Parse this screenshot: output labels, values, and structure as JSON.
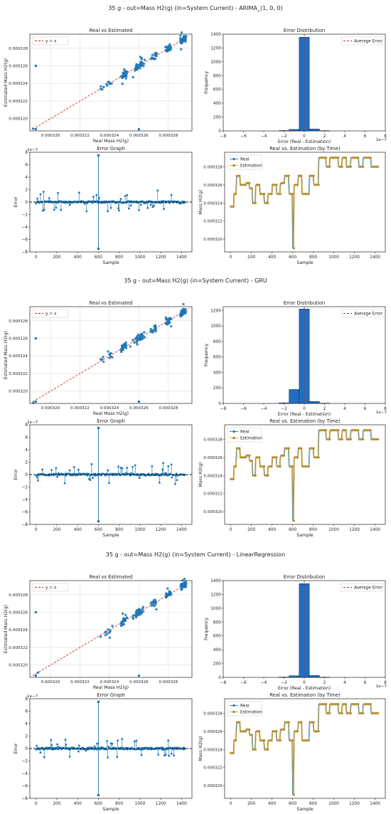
{
  "figures": [
    {
      "title": "35 g - out=Mass H2(g) (in=System Current) - ARIMA_(1, 0, 0)",
      "scatter": {
        "title": "Real vs Estimated",
        "xlabel": "Real Mass H2(g)",
        "ylabel": "Estimated Mass H2(g)",
        "legend": "y = x"
      },
      "hist": {
        "title": "Error Distribution",
        "xlabel": "Error (Real - Estimation)",
        "ylabel": "Frequency",
        "legend": "Average Error",
        "ylim": [
          0,
          1400
        ],
        "yticks": [
          0,
          200,
          400,
          600,
          800,
          1000,
          1200,
          1400
        ],
        "bars": [
          0,
          5,
          22,
          1356,
          28,
          4,
          0
        ],
        "offset": "1e−7"
      },
      "errgraph": {
        "title": "Error Graph",
        "xlabel": "Sample",
        "ylabel": "Error",
        "offset": "1e−7"
      },
      "timeseries": {
        "title": "Real vs. Estimation (by Time)",
        "xlabel": "Sample",
        "ylabel": "Mass H2(g)",
        "legend": [
          "Real",
          "Estimation"
        ]
      }
    },
    {
      "title": "35 g - out=Mass H2(g) (in=System Current) - GRU",
      "scatter": {
        "title": "Real vs Estimated",
        "xlabel": "Real Mass H2(g)",
        "ylabel": "Estimated Mass H2(g)",
        "legend": "y = x"
      },
      "hist": {
        "title": "Error Distribution",
        "xlabel": "Error (Real - Estimation)",
        "ylabel": "Frequency",
        "legend": "Average Error",
        "ylim": [
          0,
          1250
        ],
        "yticks": [
          0,
          200,
          400,
          600,
          800,
          1000,
          1200
        ],
        "bars": [
          0,
          8,
          180,
          1220,
          26,
          4,
          0
        ],
        "offset": "1e−7"
      },
      "errgraph": {
        "title": "Error Graph",
        "xlabel": "Sample",
        "ylabel": "Error",
        "offset": "1e−7"
      },
      "timeseries": {
        "title": "Real vs. Estimation (by Time)",
        "xlabel": "Sample",
        "ylabel": "Mass H2(g)",
        "legend": [
          "Real",
          "Estimation"
        ]
      }
    },
    {
      "title": "35 g - out=Mass H2(g) (in=System Current) - LinearRegression",
      "scatter": {
        "title": "Real vs Estimated",
        "xlabel": "Real Mass H2(g)",
        "ylabel": "Estimated Mass H2(g)",
        "legend": "y = x"
      },
      "hist": {
        "title": "Error Distribution",
        "xlabel": "Error (Real - Estimation)",
        "ylabel": "Frequency",
        "legend": "Average Error",
        "ylim": [
          0,
          1400
        ],
        "yticks": [
          0,
          200,
          400,
          600,
          800,
          1000,
          1200,
          1400
        ],
        "bars": [
          0,
          5,
          24,
          1356,
          28,
          4,
          0
        ],
        "offset": "1e−7"
      },
      "errgraph": {
        "title": "Error Graph",
        "xlabel": "Sample",
        "ylabel": "Error",
        "offset": "1e−7"
      },
      "timeseries": {
        "title": "Real vs. Estimation (by Time)",
        "xlabel": "Sample",
        "ylabel": "Mass H2(g)",
        "legend": [
          "Real",
          "Estimation"
        ]
      }
    }
  ],
  "chart_data": {
    "type": "scatter",
    "mass_axis": {
      "ticks": [
        0.00032,
        0.000322,
        0.000324,
        0.000326,
        0.000328
      ],
      "range": [
        0.0003186,
        0.0003296
      ]
    },
    "hist_x_ticks": [
      -8,
      -6,
      -4,
      -2,
      0,
      2,
      4,
      6,
      8
    ],
    "hist_bin_edges": [
      -2.5,
      -1.5,
      -0.5,
      0.5,
      1.5,
      2.5
    ],
    "error_y_ticks": [
      -8,
      -6,
      -4,
      -2,
      0,
      2,
      4,
      6,
      8
    ],
    "sample_ticks": [
      0,
      200,
      400,
      600,
      800,
      1000,
      1200,
      1400
    ],
    "samples_per_run": 1440,
    "real_series_levels": [
      [
        0,
        0.0003236
      ],
      [
        30,
        0.000325
      ],
      [
        50,
        0.000327
      ],
      [
        90,
        0.000326
      ],
      [
        140,
        0.0003262
      ],
      [
        180,
        0.0003256
      ],
      [
        210,
        0.000324
      ],
      [
        240,
        0.000326
      ],
      [
        280,
        0.000325
      ],
      [
        320,
        0.000324
      ],
      [
        360,
        0.000325
      ],
      [
        400,
        0.000326
      ],
      [
        440,
        0.000325
      ],
      [
        480,
        0.0003262
      ],
      [
        520,
        0.000327
      ],
      [
        560,
        0.000325
      ],
      [
        595,
        0.000319
      ],
      [
        610,
        0.000326
      ],
      [
        650,
        0.000327
      ],
      [
        690,
        0.000325
      ],
      [
        720,
        0.000325
      ],
      [
        760,
        0.000327
      ],
      [
        800,
        0.000326
      ],
      [
        850,
        0.000329
      ],
      [
        880,
        0.000329
      ],
      [
        920,
        0.000328
      ],
      [
        960,
        0.000329
      ],
      [
        1000,
        0.000329
      ],
      [
        1040,
        0.000328
      ],
      [
        1080,
        0.000329
      ],
      [
        1120,
        0.000328
      ],
      [
        1160,
        0.000329
      ],
      [
        1200,
        0.000329
      ],
      [
        1240,
        0.000328
      ],
      [
        1280,
        0.000329
      ],
      [
        1320,
        0.000329
      ],
      [
        1360,
        0.000328
      ],
      [
        1400,
        0.000328
      ]
    ],
    "error_spike": {
      "sample": 600,
      "max": 7.5,
      "min": -7.5
    }
  }
}
